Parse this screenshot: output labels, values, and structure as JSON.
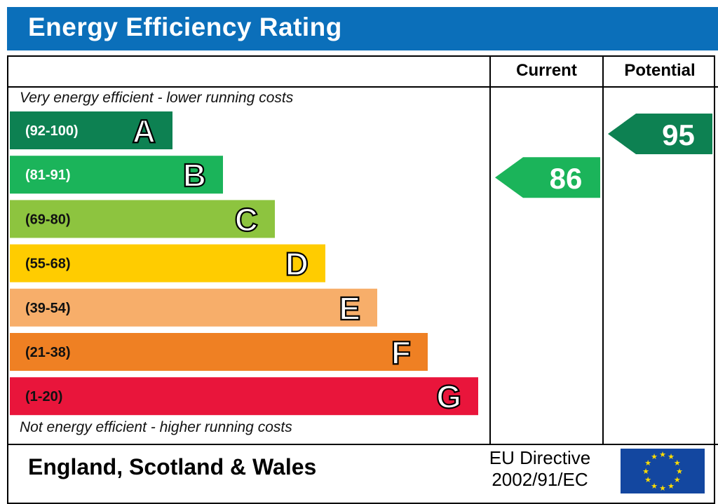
{
  "title": "Energy Efficiency Rating",
  "columns": {
    "current": "Current",
    "potential": "Potential"
  },
  "top_note": "Very energy efficient - lower running costs",
  "bottom_note": "Not energy efficient - higher running costs",
  "footer": {
    "region": "England, Scotland & Wales",
    "directive_line1": "EU Directive",
    "directive_line2": "2002/91/EC"
  },
  "chart_data": {
    "type": "bar",
    "categories": [
      "A",
      "B",
      "C",
      "D",
      "E",
      "F",
      "G"
    ],
    "ranges": [
      "(92-100)",
      "(81-91)",
      "(69-80)",
      "(55-68)",
      "(39-54)",
      "(21-38)",
      "(1-20)"
    ],
    "colors": [
      "#0d8152",
      "#1bb45a",
      "#8dc43f",
      "#ffcc00",
      "#f7ae6a",
      "#ef8023",
      "#e9153b"
    ],
    "current": {
      "value": 86,
      "band": "B",
      "color": "#1bb45a"
    },
    "potential": {
      "value": 95,
      "band": "A",
      "color": "#0d8152"
    }
  }
}
